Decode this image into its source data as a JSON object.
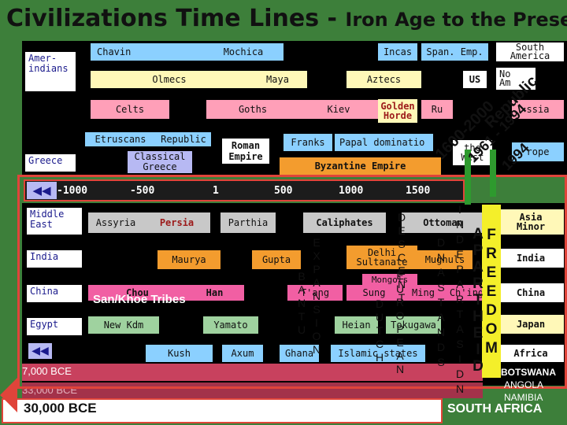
{
  "title": {
    "main": "Civilizations Time Lines - ",
    "sub": "Iron Age to the Present"
  },
  "regions": {
    "amerindians": "Amer-\nindians",
    "greece": "Greece",
    "middle_east": "Middle\nEast",
    "india": "India",
    "china": "China",
    "egypt": "Egypt"
  },
  "upper": {
    "chavin": "Chavin",
    "mochica": "Mochica",
    "incas": "Incas",
    "span_emp": "Span. Emp.",
    "south_america": "South\nAmerica",
    "olmecs": "Olmecs",
    "maya": "Maya",
    "aztecs": "Aztecs",
    "us": "US",
    "north_america": "No\nAm",
    "celts": "Celts",
    "goths": "Goths",
    "kiev": "Kiev",
    "golden_horde": "Golden\nHorde",
    "ru": "Ru",
    "russia": "ssia",
    "etruscans": "Etruscans",
    "republic": "Republic",
    "roman_empire": "Roman\nEmpire",
    "franks": "Franks",
    "papal": "Papal dominatio",
    "west": "the\nWest",
    "europe": "rope",
    "classical_greece": "Classical\nGreece",
    "byzantine": "Byzantine Empire"
  },
  "timeline": {
    "ticks": [
      "1000",
      "500",
      "1",
      "500",
      "1000",
      "1500"
    ],
    "prefix": [
      "-",
      "-",
      "",
      "",
      "",
      ""
    ]
  },
  "lower": {
    "assyria": "Assyria",
    "persia": "Persia",
    "parthia": "Parthia",
    "caliphates": "Caliphates",
    "ottoman": "Ottoman",
    "asia_minor": "Asia\nMinor",
    "maurya": "Maurya",
    "gupta": "Gupta",
    "delhi": "Delhi\nSultanate",
    "mughuls": "Mughuls",
    "india_r": "India",
    "chou": "Chou",
    "han": "Han",
    "tang": "T'ang",
    "sung": "Sung",
    "ming": "Ming",
    "ching": "Ch'ing",
    "mongols": "Mongols",
    "china_r": "China",
    "new_kdm": "New Kdm",
    "yamato": "Yamato",
    "heian": "Heian",
    "tokugawa": "Tokugawa",
    "japan": "Japan",
    "kush": "Kush",
    "axum": "Axum",
    "ghana": "Ghana",
    "islamic": "Islamic states",
    "africa": "Africa",
    "san_khoe": "San/Khoe Tribes"
  },
  "vertical_words": {
    "bantu": [
      "B",
      "A",
      "N",
      "T",
      "U"
    ],
    "expansion": [
      "E",
      "X",
      "P",
      "A",
      "N",
      "S",
      "I",
      "O",
      "N"
    ],
    "descent": [
      "D",
      "E",
      "S",
      "C",
      "E",
      "N",
      "T"
    ],
    "dutch": [
      "D",
      "U",
      "T",
      "C",
      "H"
    ],
    "european": [
      "E",
      "U",
      "R",
      "O",
      "P",
      "E",
      "A",
      "N"
    ],
    "dnastand": [
      "D",
      "N",
      "A",
      "S",
      "T",
      "A",
      "N",
      "D",
      "S"
    ],
    "partition": [
      "I",
      "N",
      "D",
      "E",
      "P",
      "A",
      "R",
      "T",
      "A",
      "S",
      "I",
      "D",
      "N"
    ],
    "apartheid": [
      "A",
      "P",
      "A",
      "R",
      "T",
      "H",
      "E",
      "I",
      "D"
    ],
    "freedom": [
      "F",
      "R",
      "E",
      "E",
      "D",
      "O",
      "M"
    ]
  },
  "diagonal": {
    "d1600": "1600-2000",
    "republic": "Republic",
    "d1961": "1961 - 1994",
    "d1994": "1994"
  },
  "ages": {
    "bce7000": "7,000 BCE",
    "bce33000": "33,000 BCE",
    "bce30000": "30,000 BCE"
  },
  "countries": {
    "botswana": "BOTSWANA",
    "angola": "ANGOLA",
    "namibia": "NAMIBIA",
    "south_africa": "SOUTH AFRICA"
  },
  "colors": {
    "background": "#3d7f3a",
    "chart_bg": "#000000",
    "highlight": "#e0443a",
    "arrow_green": "#2e9a2e"
  }
}
